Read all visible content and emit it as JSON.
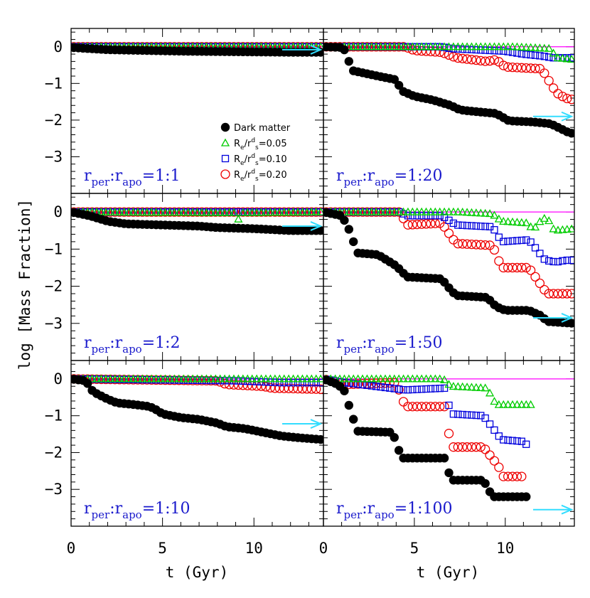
{
  "chart_data": {
    "type": "scatter",
    "ylabel": "log [Mass Fraction]",
    "xlabel": "t (Gyr)",
    "xlim": [
      0,
      13.8
    ],
    "ylim": [
      -4,
      0.5
    ],
    "x_ticks": [
      0,
      5,
      10
    ],
    "y_ticks": [
      0,
      -1,
      -2,
      -3
    ],
    "colors": {
      "dark_matter": "#000000",
      "r005": "#00cc00",
      "r010": "#0000dd",
      "r020": "#ee0000",
      "arrow": "#33ddff",
      "panel_label": "#1a1acc",
      "top_band": "#ff00ff"
    },
    "legend": {
      "placement": "middle-right of top-left panel",
      "entries": [
        {
          "key": "dark_matter",
          "marker": "filled-circle",
          "label": "Dark matter"
        },
        {
          "key": "r005",
          "marker": "open-triangle",
          "label": "R_e/r^d_s=0.05",
          "base": "R",
          "sub1": "e",
          "mid": "/r",
          "sup": "d",
          "sub2": "s",
          "value": "=0.05"
        },
        {
          "key": "r010",
          "marker": "open-square",
          "label": "R_e/r^d_s=0.10",
          "base": "R",
          "sub1": "e",
          "mid": "/r",
          "sup": "d",
          "sub2": "s",
          "value": "=0.10"
        },
        {
          "key": "r020",
          "marker": "open-circle",
          "label": "R_e/r^d_s=0.20",
          "base": "R",
          "sub1": "e",
          "mid": "/r",
          "sup": "d",
          "sub2": "s",
          "value": "=0.20"
        }
      ]
    },
    "panels": [
      {
        "id": "p1",
        "label": "r_per:r_apo=1:1",
        "ratio": "=1:1",
        "arrow_y": -0.08,
        "series": {
          "dark_matter": [
            [
              0,
              -0.02
            ],
            [
              1,
              -0.05
            ],
            [
              2,
              -0.08
            ],
            [
              4,
              -0.1
            ],
            [
              6,
              -0.12
            ],
            [
              8,
              -0.13
            ],
            [
              10,
              -0.14
            ],
            [
              12,
              -0.15
            ],
            [
              13.8,
              -0.15
            ]
          ],
          "r005": [
            [
              0,
              0
            ],
            [
              13.8,
              0
            ]
          ],
          "r010": [
            [
              0,
              0
            ],
            [
              13.8,
              0
            ]
          ],
          "r020": [
            [
              0,
              0
            ],
            [
              13.8,
              0
            ]
          ]
        }
      },
      {
        "id": "p2",
        "label": "r_per:r_apo=1:20",
        "ratio": "=1:20",
        "arrow_y": -1.9,
        "series": {
          "dark_matter": [
            [
              0,
              0
            ],
            [
              1.1,
              -0.02
            ],
            [
              1.6,
              -0.65
            ],
            [
              3,
              -0.8
            ],
            [
              4,
              -0.9
            ],
            [
              4.3,
              -1.2
            ],
            [
              5,
              -1.35
            ],
            [
              6,
              -1.45
            ],
            [
              7,
              -1.6
            ],
            [
              7.5,
              -1.72
            ],
            [
              8,
              -1.75
            ],
            [
              9.5,
              -1.82
            ],
            [
              10.2,
              -2.02
            ],
            [
              11.5,
              -2.05
            ],
            [
              12.5,
              -2.1
            ],
            [
              13.4,
              -2.32
            ],
            [
              13.8,
              -2.38
            ]
          ],
          "r005": [
            [
              0,
              0
            ],
            [
              10.5,
              0
            ],
            [
              12.5,
              -0.05
            ],
            [
              12.8,
              -0.3
            ],
            [
              13.8,
              -0.35
            ]
          ],
          "r010": [
            [
              0,
              0
            ],
            [
              6.5,
              0
            ],
            [
              7,
              -0.05
            ],
            [
              10,
              -0.12
            ],
            [
              11,
              -0.2
            ],
            [
              12,
              -0.25
            ],
            [
              12.6,
              -0.3
            ],
            [
              13.8,
              -0.3
            ]
          ],
          "r020": [
            [
              0,
              0
            ],
            [
              4.5,
              0
            ],
            [
              5,
              -0.1
            ],
            [
              6.5,
              -0.15
            ],
            [
              7.3,
              -0.3
            ],
            [
              9,
              -0.4
            ],
            [
              9.5,
              -0.35
            ],
            [
              10,
              -0.55
            ],
            [
              12,
              -0.6
            ],
            [
              12.8,
              -1.25
            ],
            [
              13.3,
              -1.4
            ],
            [
              13.8,
              -1.45
            ]
          ]
        }
      },
      {
        "id": "p3",
        "label": "r_per:r_apo=1:2",
        "ratio": "=1:2",
        "arrow_y": -0.38,
        "series": {
          "dark_matter": [
            [
              0,
              0
            ],
            [
              1,
              -0.1
            ],
            [
              2,
              -0.25
            ],
            [
              3,
              -0.32
            ],
            [
              5,
              -0.35
            ],
            [
              7,
              -0.38
            ],
            [
              8,
              -0.42
            ],
            [
              10,
              -0.45
            ],
            [
              12,
              -0.5
            ],
            [
              13.8,
              -0.5
            ]
          ],
          "r005": [
            [
              0,
              0
            ],
            [
              9,
              -0.02
            ],
            [
              9.2,
              -0.25
            ],
            [
              9.4,
              -0.02
            ],
            [
              13.8,
              0
            ]
          ],
          "r010": [
            [
              0,
              0
            ],
            [
              13.8,
              0
            ]
          ],
          "r020": [
            [
              0,
              0
            ],
            [
              13.8,
              0
            ]
          ]
        }
      },
      {
        "id": "p4",
        "label": "r_per:r_apo=1:50",
        "ratio": "=1:50",
        "arrow_y": -2.85,
        "series": {
          "dark_matter": [
            [
              0,
              0
            ],
            [
              1,
              -0.1
            ],
            [
              1.3,
              -0.35
            ],
            [
              1.6,
              -0.7
            ],
            [
              1.8,
              -1.1
            ],
            [
              3,
              -1.15
            ],
            [
              3.5,
              -1.3
            ],
            [
              4,
              -1.45
            ],
            [
              4.3,
              -1.6
            ],
            [
              4.6,
              -1.75
            ],
            [
              6.5,
              -1.8
            ],
            [
              7,
              -2.1
            ],
            [
              7.3,
              -2.25
            ],
            [
              9,
              -2.3
            ],
            [
              9.5,
              -2.55
            ],
            [
              10,
              -2.65
            ],
            [
              11.3,
              -2.65
            ],
            [
              12,
              -2.8
            ],
            [
              12.3,
              -2.95
            ],
            [
              13.8,
              -3
            ]
          ],
          "r005": [
            [
              0,
              0
            ],
            [
              7.5,
              0
            ],
            [
              9.3,
              -0.05
            ],
            [
              9.8,
              -0.25
            ],
            [
              11.3,
              -0.3
            ],
            [
              11.5,
              -0.5
            ],
            [
              12,
              -0.2
            ],
            [
              12.3,
              -0.15
            ],
            [
              12.7,
              -0.5
            ],
            [
              13.8,
              -0.45
            ]
          ],
          "r010": [
            [
              0,
              0
            ],
            [
              4.3,
              0
            ],
            [
              4.5,
              -0.1
            ],
            [
              6.5,
              -0.1
            ],
            [
              7.3,
              -0.35
            ],
            [
              9.3,
              -0.4
            ],
            [
              9.8,
              -0.8
            ],
            [
              11.3,
              -0.75
            ],
            [
              12.2,
              -1.3
            ],
            [
              12.8,
              -1.35
            ],
            [
              13.3,
              -1.3
            ],
            [
              13.8,
              -1.3
            ]
          ],
          "r020": [
            [
              0,
              0
            ],
            [
              4.3,
              0
            ],
            [
              4.5,
              -0.35
            ],
            [
              6.5,
              -0.3
            ],
            [
              7.3,
              -0.85
            ],
            [
              9.3,
              -0.9
            ],
            [
              9.8,
              -1.5
            ],
            [
              11.3,
              -1.5
            ],
            [
              12.3,
              -2.2
            ],
            [
              13.8,
              -2.2
            ]
          ]
        }
      },
      {
        "id": "p5",
        "label": "r_per:r_apo=1:10",
        "ratio": "=1:10",
        "arrow_y": -1.22,
        "series": {
          "dark_matter": [
            [
              0,
              0
            ],
            [
              0.8,
              -0.05
            ],
            [
              1.2,
              -0.35
            ],
            [
              2,
              -0.55
            ],
            [
              2.5,
              -0.65
            ],
            [
              3.5,
              -0.7
            ],
            [
              4.3,
              -0.75
            ],
            [
              4.7,
              -0.85
            ],
            [
              5,
              -0.95
            ],
            [
              6,
              -1.05
            ],
            [
              7,
              -1.1
            ],
            [
              7.5,
              -1.15
            ],
            [
              8,
              -1.2
            ],
            [
              8.5,
              -1.3
            ],
            [
              9.5,
              -1.35
            ],
            [
              10.5,
              -1.45
            ],
            [
              11.5,
              -1.55
            ],
            [
              12.5,
              -1.6
            ],
            [
              13.8,
              -1.65
            ]
          ],
          "r005": [
            [
              0,
              0
            ],
            [
              13.8,
              0
            ]
          ],
          "r010": [
            [
              0,
              0
            ],
            [
              9,
              -0.05
            ],
            [
              11.5,
              -0.1
            ],
            [
              13.8,
              -0.1
            ]
          ],
          "r020": [
            [
              0,
              0
            ],
            [
              8,
              -0.05
            ],
            [
              8.5,
              -0.15
            ],
            [
              10.5,
              -0.2
            ],
            [
              11,
              -0.25
            ],
            [
              13.8,
              -0.28
            ]
          ]
        }
      },
      {
        "id": "p6",
        "label": "r_per:r_apo=1:100",
        "ratio": "=1:100",
        "arrow_y": -3.55,
        "series": {
          "dark_matter": [
            [
              0,
              0
            ],
            [
              0.8,
              -0.15
            ],
            [
              1.2,
              -0.35
            ],
            [
              1.5,
              -0.9
            ],
            [
              1.9,
              -1.42
            ],
            [
              3.8,
              -1.45
            ],
            [
              4.3,
              -2.15
            ],
            [
              6.7,
              -2.15
            ],
            [
              7,
              -2.75
            ],
            [
              8.8,
              -2.75
            ],
            [
              9.3,
              -3.2
            ],
            [
              11.3,
              -3.2
            ]
          ],
          "r005": [
            [
              0,
              0
            ],
            [
              1.5,
              0
            ],
            [
              3.5,
              0
            ],
            [
              4.3,
              0
            ],
            [
              6.6,
              0
            ],
            [
              7,
              -0.2
            ],
            [
              9,
              -0.25
            ],
            [
              9.5,
              -0.7
            ],
            [
              11.5,
              -0.7
            ]
          ],
          "r010": [
            [
              0,
              0
            ],
            [
              1.2,
              -0.1
            ],
            [
              4.5,
              -0.3
            ],
            [
              6.7,
              -0.25
            ],
            [
              7,
              -0.95
            ],
            [
              8.8,
              -1.0
            ],
            [
              9.8,
              -1.65
            ],
            [
              11,
              -1.7
            ],
            [
              11.3,
              -1.85
            ]
          ],
          "r020": [
            [
              0,
              0
            ],
            [
              1.2,
              -0.15
            ],
            [
              4,
              -0.1
            ],
            [
              4.5,
              -0.75
            ],
            [
              6.7,
              -0.75
            ],
            [
              7,
              -1.85
            ],
            [
              8.8,
              -1.85
            ],
            [
              9.6,
              -2.35
            ],
            [
              9.9,
              -2.65
            ],
            [
              11,
              -2.65
            ]
          ]
        }
      }
    ]
  }
}
